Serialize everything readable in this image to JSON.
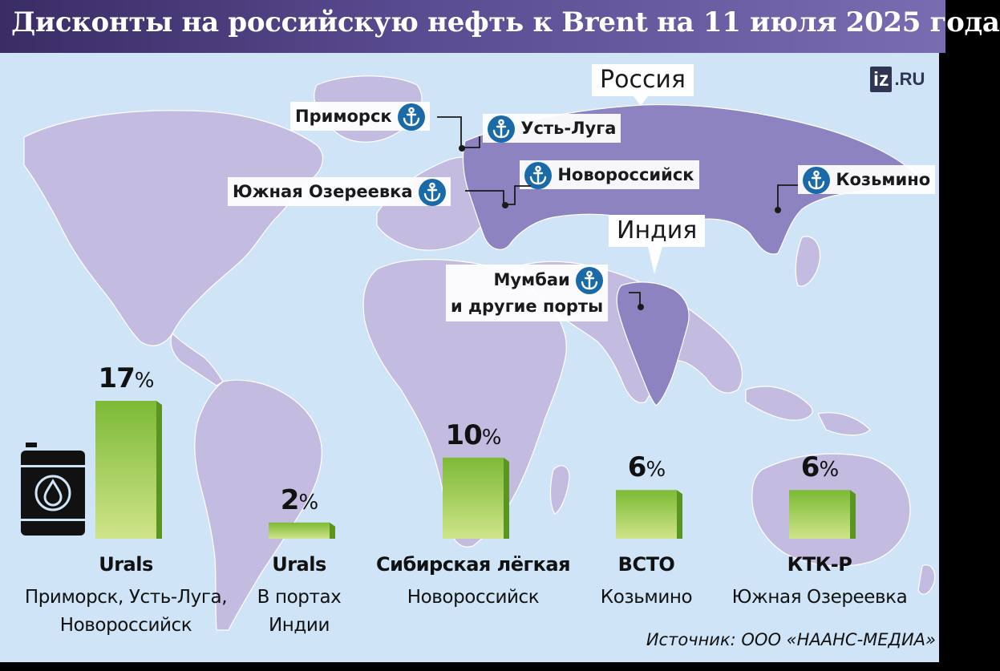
{
  "title": "Дисконты на российскую нефть к Brent на 11 июля 2025 года",
  "logo": {
    "badge": "iz",
    "suffix": ".RU"
  },
  "map": {
    "countries": [
      {
        "key": "russia",
        "label": "Россия"
      },
      {
        "key": "india",
        "label": "Индия"
      }
    ],
    "ports": [
      {
        "key": "primorsk",
        "label": "Приморск"
      },
      {
        "key": "ust-luga",
        "label": "Усть-Луга"
      },
      {
        "key": "yuzhnaya-ozereevka",
        "label": "Южная Озереевка"
      },
      {
        "key": "novorossiysk",
        "label": "Новороссийск"
      },
      {
        "key": "kozmino",
        "label": "Козьмино"
      },
      {
        "key": "mumbai",
        "label": "Мумбаи",
        "label2": "и другие порты"
      }
    ]
  },
  "chart_data": {
    "type": "bar",
    "title": "Дисконты на российскую нефть к Brent на 11 июля 2025 года",
    "unit": "%",
    "categories": [
      {
        "name": "Urals",
        "sub": [
          "Приморск, Усть-Луга,",
          "Новороссийск"
        ]
      },
      {
        "name": "Urals",
        "sub": [
          "В портах",
          "Индии"
        ]
      },
      {
        "name": "Сибирская лёгкая",
        "sub": [
          "Новороссийск"
        ]
      },
      {
        "name": "ВСТО",
        "sub": [
          "Козьмино"
        ]
      },
      {
        "name": "КТК-Р",
        "sub": [
          "Южная Озереевка"
        ]
      }
    ],
    "values": [
      17,
      2,
      10,
      6,
      6
    ],
    "ylim": [
      0,
      17
    ],
    "grid": false,
    "colors": {
      "bar_top": "#7cba35",
      "bar_bottom": "#c8e07a",
      "bar_side": "#5a9520"
    }
  },
  "source": "Источник: ООО «НААНС-МЕДИА»",
  "colors": {
    "title_bar": "#4b3d7e",
    "ocean": "#cfe4f6",
    "land": "#c4bce0",
    "russia_india": "#8e83c1",
    "anchor": "#1b6aa8"
  }
}
